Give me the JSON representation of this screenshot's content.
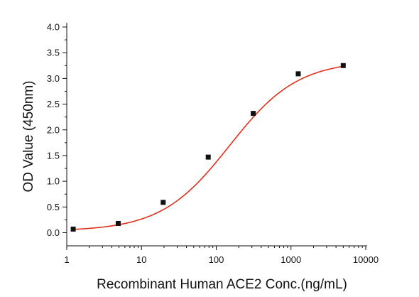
{
  "chart_data": {
    "type": "scatter",
    "xlabel": "Recombinant Human ACE2 Conc.(ng/mL)",
    "ylabel": "OD Value (450nm)",
    "x_scale": "log",
    "xlim": [
      1,
      10000
    ],
    "ylim": [
      0,
      4.0
    ],
    "x_ticks": [
      1,
      10,
      100,
      1000,
      10000
    ],
    "x_tick_labels": [
      "1",
      "10",
      "100",
      "1000",
      "10000"
    ],
    "y_ticks": [
      0.0,
      0.5,
      1.0,
      1.5,
      2.0,
      2.5,
      3.0,
      3.5,
      4.0
    ],
    "y_tick_labels": [
      "0.0",
      "0.5",
      "1.0",
      "1.5",
      "2.0",
      "2.5",
      "3.0",
      "3.5",
      "4.0"
    ],
    "grid": false,
    "legend": false,
    "series": [
      {
        "kind": "points",
        "x": [
          1.22,
          4.88,
          19.5,
          78.1,
          312.5,
          1250,
          5000
        ],
        "y": [
          0.07,
          0.18,
          0.59,
          1.47,
          2.32,
          3.09,
          3.25
        ],
        "color": "#111111"
      },
      {
        "kind": "fit-curve",
        "color": "#e0301e",
        "model": "4PL",
        "bottom": 0.03,
        "top": 3.35,
        "ec50": 150,
        "hill": 0.95
      }
    ]
  }
}
